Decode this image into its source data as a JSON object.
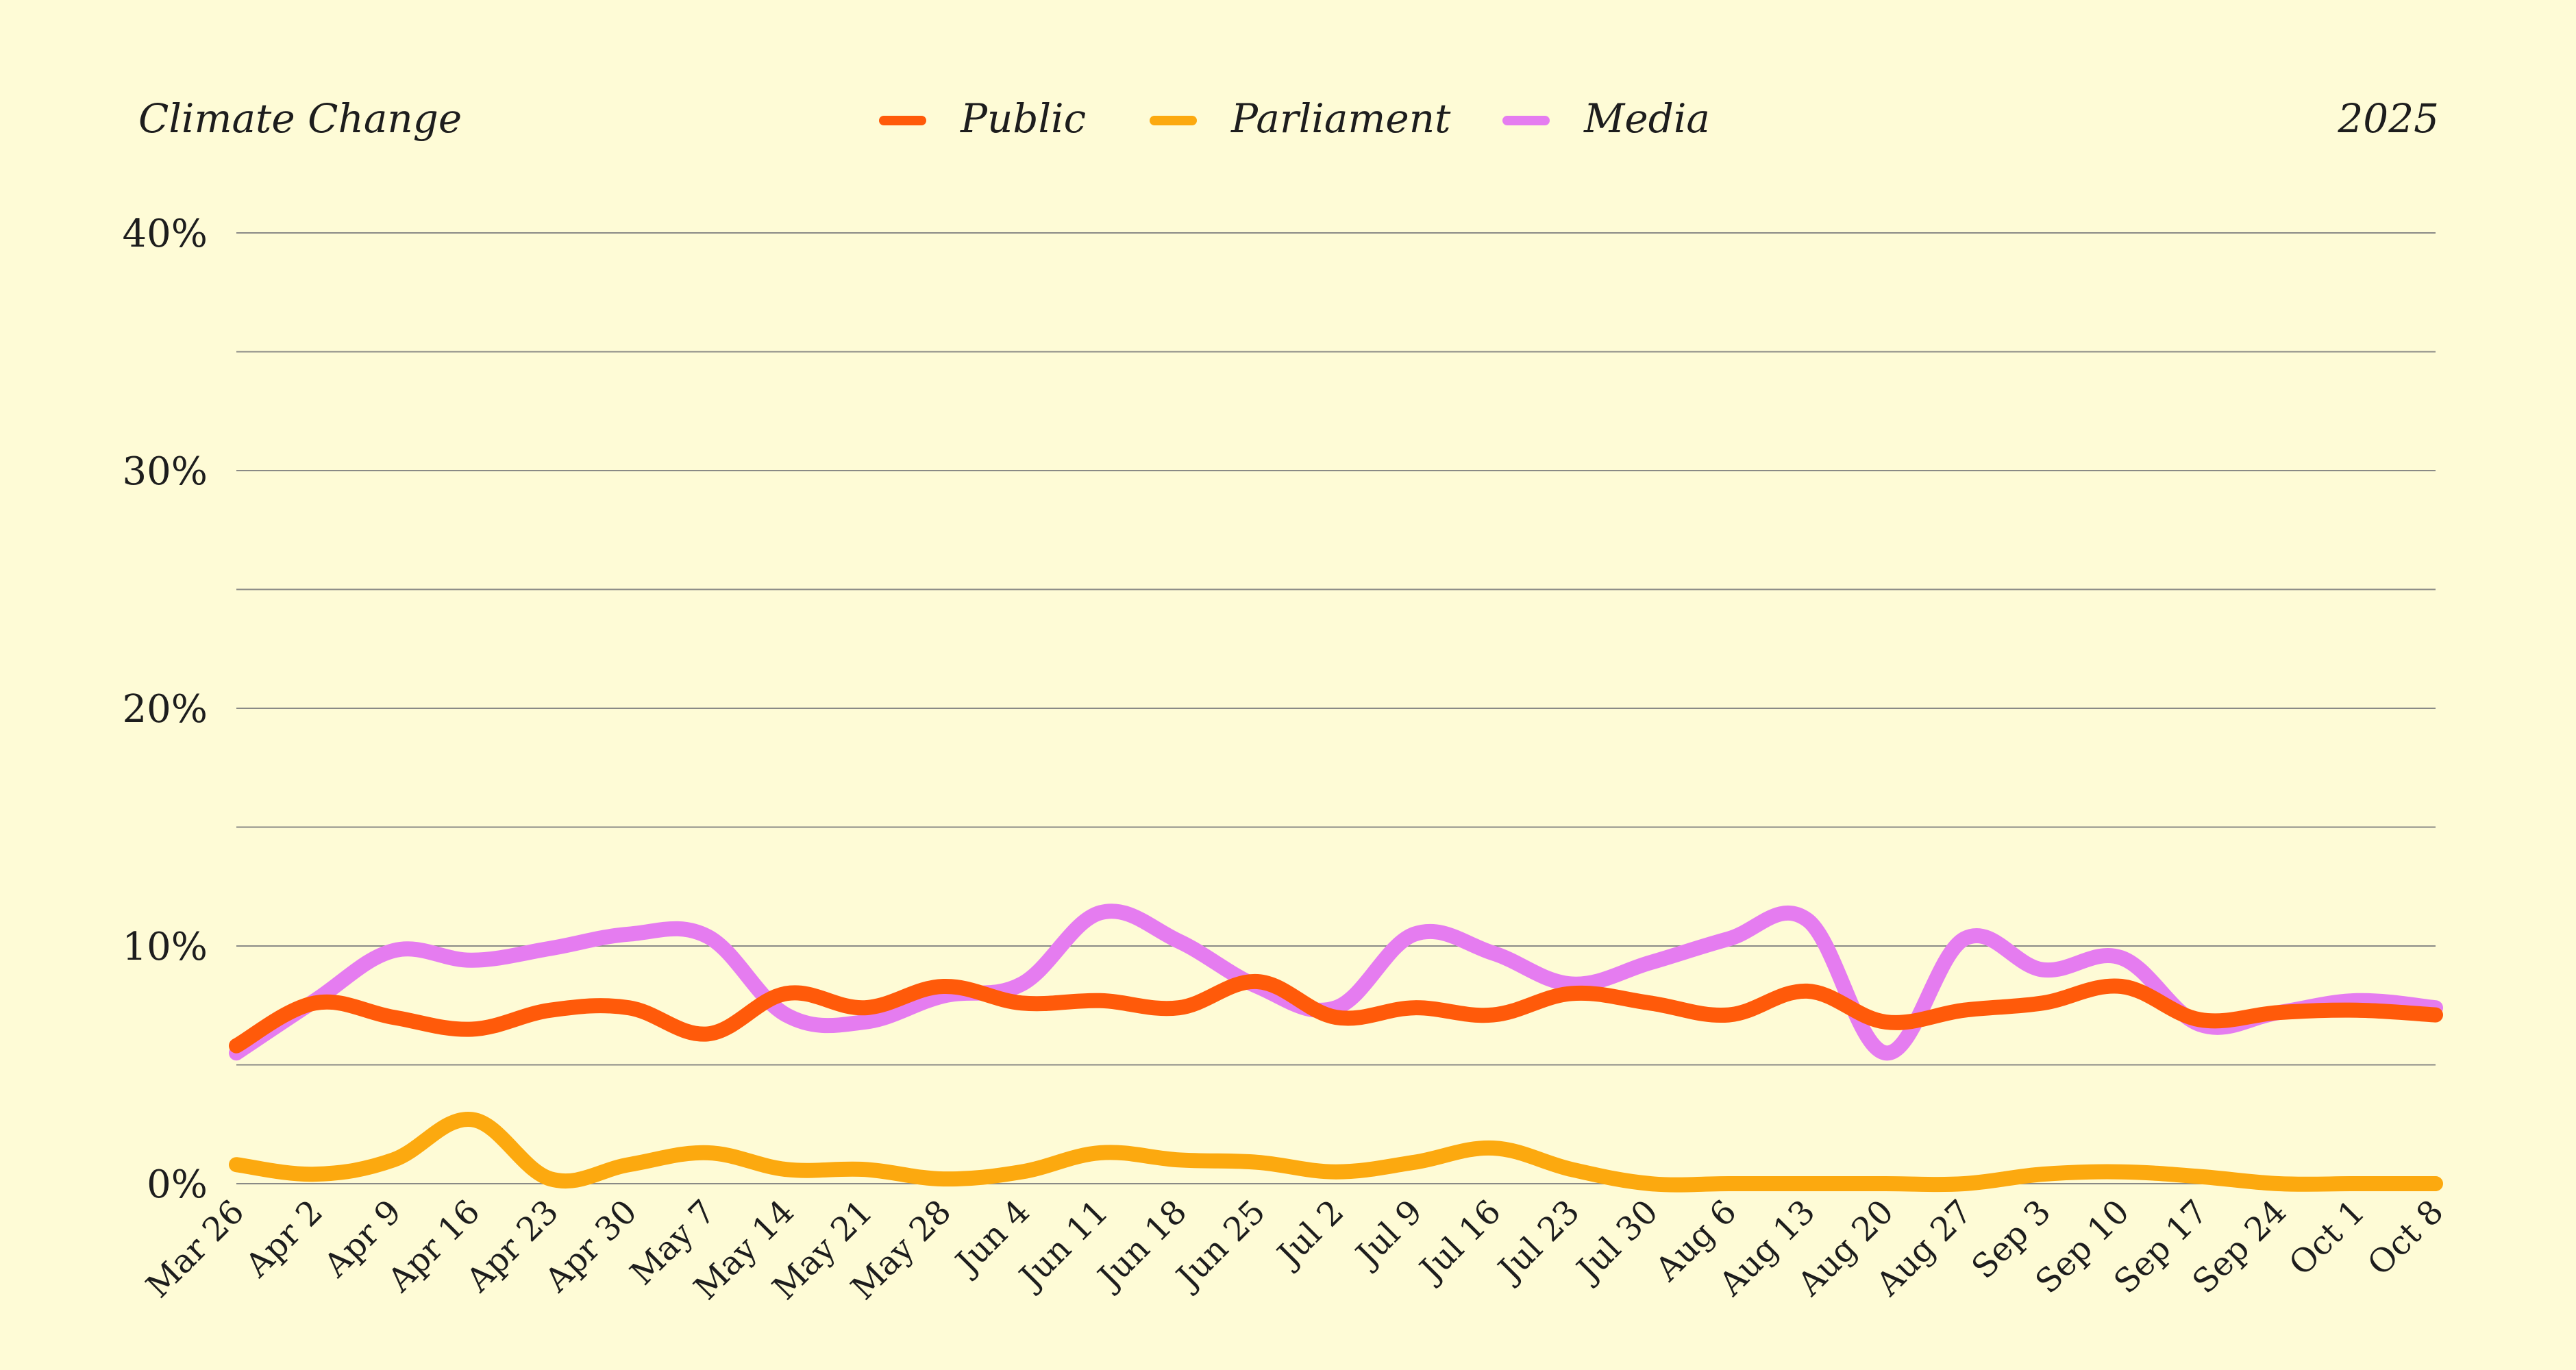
{
  "chart_data": {
    "type": "line",
    "title": "Climate Change",
    "year_label": "2025",
    "xlabel": "",
    "ylabel": "",
    "ylim": [
      0,
      40
    ],
    "yticks": [
      "0%",
      "10%",
      "20%",
      "30%",
      "40%"
    ],
    "grid": true,
    "legend_position": "top-center",
    "categories": [
      "Mar 26",
      "Apr 2",
      "Apr 9",
      "Apr 16",
      "Apr 23",
      "Apr 30",
      "May 7",
      "May 14",
      "May 21",
      "May 28",
      "Jun 4",
      "Jun 11",
      "Jun 18",
      "Jun 25",
      "Jul 2",
      "Jul 9",
      "Jul 16",
      "Jul 23",
      "Jul 30",
      "Aug 6",
      "Aug 13",
      "Aug 20",
      "Aug 27",
      "Sep 3",
      "Sep 10",
      "Sep 17",
      "Sep 24",
      "Oct 1",
      "Oct 8"
    ],
    "series": [
      {
        "name": "Public",
        "color": "#ff5a0a",
        "values": [
          5.8,
          7.6,
          7.0,
          6.5,
          7.3,
          7.4,
          6.3,
          8.0,
          7.4,
          8.3,
          7.6,
          7.7,
          7.4,
          8.5,
          7.0,
          7.4,
          7.1,
          8.0,
          7.6,
          7.1,
          8.1,
          6.8,
          7.3,
          7.6,
          8.3,
          6.9,
          7.2,
          7.3,
          7.1
        ]
      },
      {
        "name": "Parliament",
        "color": "#fca90f",
        "values": [
          0.8,
          0.4,
          1.0,
          2.7,
          0.2,
          0.8,
          1.3,
          0.6,
          0.6,
          0.2,
          0.5,
          1.3,
          1.0,
          0.9,
          0.5,
          0.9,
          1.5,
          0.6,
          0.0,
          0.0,
          0.0,
          0.0,
          0.0,
          0.4,
          0.5,
          0.3,
          0.0,
          0.0,
          0.0
        ]
      },
      {
        "name": "Media",
        "color": "#e57cf0",
        "values": [
          5.5,
          7.7,
          9.8,
          9.4,
          9.9,
          10.5,
          10.4,
          7.1,
          6.8,
          7.9,
          8.4,
          11.4,
          10.2,
          8.3,
          7.4,
          10.5,
          9.7,
          8.4,
          9.3,
          10.3,
          11.1,
          5.5,
          10.3,
          9.0,
          9.5,
          6.7,
          7.2,
          7.7,
          7.4
        ]
      }
    ]
  }
}
